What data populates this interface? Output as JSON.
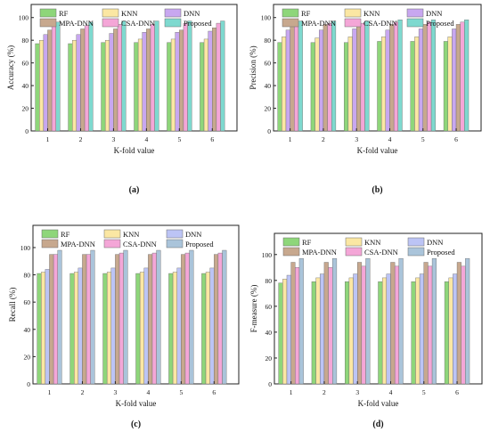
{
  "figure": {
    "series_colors": [
      "#8ed67a",
      "#fbe7a3",
      "#c8a7f0",
      "#c7a88e",
      "#f4a6d7",
      "#7ed9cf"
    ],
    "series_colors_bottom": [
      "#8ed67a",
      "#fbe7a3",
      "#bcc4f5",
      "#c7a88e",
      "#f4a6d7",
      "#aac4da"
    ]
  },
  "chart_data": [
    {
      "type": "bar",
      "panel_label": "(a)",
      "xlabel": "K-fold value",
      "ylabel": "Accuracy (%)",
      "ylim": [
        0,
        110
      ],
      "yticks": [
        0,
        20,
        40,
        60,
        80,
        100
      ],
      "categories": [
        "1",
        "2",
        "3",
        "4",
        "5",
        "6"
      ],
      "legend": "inside-top",
      "series": [
        {
          "name": "RF",
          "values": [
            77,
            77,
            78,
            78,
            78,
            78
          ]
        },
        {
          "name": "KNN",
          "values": [
            80,
            80,
            80,
            81,
            81,
            81
          ]
        },
        {
          "name": "DNN",
          "values": [
            85,
            85,
            86,
            87,
            87,
            88
          ]
        },
        {
          "name": "MPA-DNN",
          "values": [
            89,
            90,
            90,
            90,
            89,
            91
          ]
        },
        {
          "name": "CSA-DNN",
          "values": [
            93,
            93,
            94,
            94,
            95,
            95
          ]
        },
        {
          "name": "Proposed",
          "values": [
            96,
            96,
            97,
            97,
            97,
            97
          ]
        }
      ]
    },
    {
      "type": "bar",
      "panel_label": "(b)",
      "xlabel": "K-fold value",
      "ylabel": "Precision (%)",
      "ylim": [
        0,
        110
      ],
      "yticks": [
        0,
        20,
        40,
        60,
        80,
        100
      ],
      "categories": [
        "1",
        "2",
        "3",
        "4",
        "5",
        "6"
      ],
      "legend": "inside-top",
      "series": [
        {
          "name": "RF",
          "values": [
            78,
            78,
            78,
            79,
            79,
            79
          ]
        },
        {
          "name": "KNN",
          "values": [
            83,
            82,
            83,
            83,
            83,
            83
          ]
        },
        {
          "name": "DNN",
          "values": [
            89,
            89,
            90,
            89,
            90,
            90
          ]
        },
        {
          "name": "MPA-DNN",
          "values": [
            94,
            94,
            94,
            94,
            94,
            94
          ]
        },
        {
          "name": "CSA-DNN",
          "values": [
            95,
            95,
            95,
            96,
            96,
            96
          ]
        },
        {
          "name": "Proposed",
          "values": [
            97,
            97,
            97,
            98,
            98,
            98
          ]
        }
      ]
    },
    {
      "type": "bar",
      "panel_label": "(c)",
      "xlabel": "K-fold value",
      "ylabel": "Recall (%)",
      "ylim": [
        0,
        115
      ],
      "yticks": [
        0,
        20,
        40,
        60,
        80,
        100
      ],
      "categories": [
        "1",
        "2",
        "3",
        "4",
        "5",
        "6"
      ],
      "legend": "inside-top",
      "series": [
        {
          "name": "RF",
          "values": [
            81,
            81,
            81,
            81,
            81,
            81
          ]
        },
        {
          "name": "KNN",
          "values": [
            82,
            82,
            82,
            82,
            82,
            82
          ]
        },
        {
          "name": "DNN",
          "values": [
            84,
            85,
            85,
            85,
            85,
            85
          ]
        },
        {
          "name": "MPA-DNN",
          "values": [
            95,
            95,
            95,
            95,
            95,
            95
          ]
        },
        {
          "name": "CSA-DNN",
          "values": [
            95,
            95,
            96,
            96,
            96,
            96
          ]
        },
        {
          "name": "Proposed",
          "values": [
            98,
            98,
            98,
            98,
            98,
            98
          ]
        }
      ]
    },
    {
      "type": "bar",
      "panel_label": "(d)",
      "xlabel": "K-fold value",
      "ylabel": "F-measure (%)",
      "ylim": [
        0,
        115
      ],
      "yticks": [
        0,
        20,
        40,
        60,
        80,
        100
      ],
      "categories": [
        "1",
        "2",
        "3",
        "4",
        "5",
        "6"
      ],
      "legend": "inside-top",
      "series": [
        {
          "name": "RF",
          "values": [
            78,
            79,
            79,
            79,
            79,
            79
          ]
        },
        {
          "name": "KNN",
          "values": [
            81,
            82,
            82,
            82,
            82,
            82
          ]
        },
        {
          "name": "DNN",
          "values": [
            84,
            85,
            85,
            85,
            85,
            85
          ]
        },
        {
          "name": "MPA-DNN",
          "values": [
            94,
            94,
            94,
            94,
            94,
            94
          ]
        },
        {
          "name": "CSA-DNN",
          "values": [
            90,
            90,
            91,
            91,
            91,
            91
          ]
        },
        {
          "name": "Proposed",
          "values": [
            97,
            97,
            97,
            97,
            97,
            97
          ]
        }
      ]
    }
  ]
}
